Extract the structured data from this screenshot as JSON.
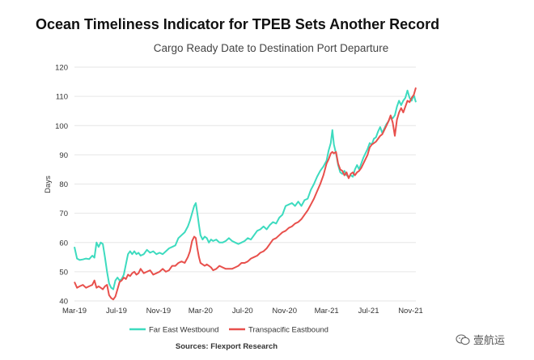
{
  "colors": {
    "far_east_westbound": "#3ddbbf",
    "transpacific_eastbound": "#e8504c",
    "gridline": "#e6e6e6"
  },
  "chart_data": {
    "type": "line",
    "title": "Ocean Timeliness Indicator for TPEB Sets Another Record",
    "subtitle": "Cargo Ready Date to Destination Port Departure",
    "xlabel": "",
    "ylabel": "Days",
    "ylim": [
      40,
      120
    ],
    "yticks": [
      "40",
      "50",
      "60",
      "70",
      "80",
      "90",
      "100",
      "110",
      "120"
    ],
    "xticks": [
      "Mar-19",
      "Jul-19",
      "Nov-19",
      "Mar-20",
      "Jul-20",
      "Nov-20",
      "Mar-21",
      "Jul-21",
      "Nov-21"
    ],
    "x_tick_positions_month": [
      0,
      4,
      8,
      12,
      16,
      20,
      24,
      28,
      32
    ],
    "grid": "horizontal",
    "legend_position": "bottom",
    "source": "Sources: Flexport Research",
    "series": [
      {
        "name": "Far East Westbound",
        "color_key": "far_east_westbound",
        "points": [
          [
            0.0,
            58.5
          ],
          [
            0.25,
            54.5
          ],
          [
            0.5,
            54.0
          ],
          [
            0.8,
            54.2
          ],
          [
            1.1,
            54.5
          ],
          [
            1.4,
            54.3
          ],
          [
            1.7,
            55.5
          ],
          [
            1.9,
            54.8
          ],
          [
            2.1,
            60.0
          ],
          [
            2.3,
            58.5
          ],
          [
            2.5,
            60.0
          ],
          [
            2.7,
            59.5
          ],
          [
            2.9,
            55.0
          ],
          [
            3.1,
            50.0
          ],
          [
            3.3,
            46.0
          ],
          [
            3.5,
            44.5
          ],
          [
            3.7,
            44.0
          ],
          [
            3.9,
            47.0
          ],
          [
            4.1,
            48.0
          ],
          [
            4.3,
            47.0
          ],
          [
            4.5,
            47.5
          ],
          [
            4.7,
            49.0
          ],
          [
            4.9,
            52.5
          ],
          [
            5.1,
            56.0
          ],
          [
            5.3,
            57.0
          ],
          [
            5.5,
            56.0
          ],
          [
            5.7,
            57.0
          ],
          [
            5.9,
            56.0
          ],
          [
            6.1,
            56.5
          ],
          [
            6.3,
            55.5
          ],
          [
            6.6,
            56.0
          ],
          [
            6.9,
            57.5
          ],
          [
            7.2,
            56.5
          ],
          [
            7.5,
            57.0
          ],
          [
            7.8,
            56.0
          ],
          [
            8.1,
            56.5
          ],
          [
            8.4,
            56.0
          ],
          [
            8.7,
            57.0
          ],
          [
            9.0,
            58.0
          ],
          [
            9.3,
            58.5
          ],
          [
            9.6,
            59.0
          ],
          [
            9.9,
            61.5
          ],
          [
            10.2,
            62.5
          ],
          [
            10.5,
            63.5
          ],
          [
            10.8,
            65.5
          ],
          [
            11.0,
            67.5
          ],
          [
            11.2,
            70.0
          ],
          [
            11.4,
            72.5
          ],
          [
            11.55,
            73.5
          ],
          [
            11.7,
            70.0
          ],
          [
            11.85,
            66.0
          ],
          [
            12.0,
            62.5
          ],
          [
            12.2,
            61.0
          ],
          [
            12.4,
            62.0
          ],
          [
            12.6,
            61.5
          ],
          [
            12.8,
            60.0
          ],
          [
            13.0,
            61.0
          ],
          [
            13.2,
            60.5
          ],
          [
            13.5,
            61.0
          ],
          [
            13.8,
            60.0
          ],
          [
            14.1,
            60.0
          ],
          [
            14.4,
            60.5
          ],
          [
            14.7,
            61.5
          ],
          [
            15.0,
            60.5
          ],
          [
            15.3,
            60.0
          ],
          [
            15.6,
            59.5
          ],
          [
            15.9,
            60.0
          ],
          [
            16.2,
            60.5
          ],
          [
            16.5,
            61.5
          ],
          [
            16.8,
            61.0
          ],
          [
            17.1,
            62.5
          ],
          [
            17.4,
            64.0
          ],
          [
            17.7,
            64.5
          ],
          [
            18.0,
            65.5
          ],
          [
            18.3,
            64.5
          ],
          [
            18.6,
            66.0
          ],
          [
            18.9,
            67.0
          ],
          [
            19.2,
            66.5
          ],
          [
            19.5,
            68.5
          ],
          [
            19.8,
            69.5
          ],
          [
            20.1,
            72.5
          ],
          [
            20.4,
            73.0
          ],
          [
            20.7,
            73.5
          ],
          [
            21.0,
            72.5
          ],
          [
            21.3,
            74.0
          ],
          [
            21.6,
            72.5
          ],
          [
            21.9,
            74.5
          ],
          [
            22.2,
            75.0
          ],
          [
            22.5,
            78.0
          ],
          [
            22.8,
            80.0
          ],
          [
            23.1,
            82.5
          ],
          [
            23.4,
            84.5
          ],
          [
            23.7,
            86.0
          ],
          [
            24.0,
            88.0
          ],
          [
            24.2,
            91.5
          ],
          [
            24.4,
            94.0
          ],
          [
            24.55,
            98.5
          ],
          [
            24.7,
            93.5
          ],
          [
            24.9,
            90.5
          ],
          [
            25.1,
            86.5
          ],
          [
            25.3,
            84.0
          ],
          [
            25.5,
            83.5
          ],
          [
            25.7,
            84.5
          ],
          [
            25.9,
            83.0
          ],
          [
            26.1,
            82.5
          ],
          [
            26.3,
            83.0
          ],
          [
            26.5,
            82.5
          ],
          [
            26.7,
            85.0
          ],
          [
            26.9,
            86.5
          ],
          [
            27.1,
            85.0
          ],
          [
            27.3,
            87.0
          ],
          [
            27.5,
            89.0
          ],
          [
            27.7,
            90.5
          ],
          [
            27.9,
            92.0
          ],
          [
            28.1,
            94.0
          ],
          [
            28.3,
            93.5
          ],
          [
            28.5,
            95.5
          ],
          [
            28.7,
            96.0
          ],
          [
            28.9,
            98.0
          ],
          [
            29.1,
            99.5
          ],
          [
            29.3,
            97.5
          ],
          [
            29.5,
            99.0
          ],
          [
            29.7,
            100.5
          ],
          [
            29.9,
            101.5
          ],
          [
            30.1,
            103.0
          ],
          [
            30.3,
            102.5
          ],
          [
            30.5,
            103.5
          ],
          [
            30.7,
            106.5
          ],
          [
            30.9,
            108.5
          ],
          [
            31.1,
            107.0
          ],
          [
            31.3,
            108.5
          ],
          [
            31.5,
            109.5
          ],
          [
            31.7,
            112.0
          ],
          [
            31.9,
            109.5
          ],
          [
            32.1,
            108.5
          ],
          [
            32.3,
            110.5
          ],
          [
            32.5,
            108.0
          ]
        ]
      },
      {
        "name": "Transpacific Eastbound",
        "color_key": "transpacific_eastbound",
        "points": [
          [
            0.0,
            46.5
          ],
          [
            0.25,
            44.5
          ],
          [
            0.5,
            45.0
          ],
          [
            0.8,
            45.5
          ],
          [
            1.1,
            44.5
          ],
          [
            1.4,
            45.0
          ],
          [
            1.7,
            45.5
          ],
          [
            1.9,
            47.0
          ],
          [
            2.1,
            44.5
          ],
          [
            2.3,
            45.0
          ],
          [
            2.5,
            44.5
          ],
          [
            2.7,
            44.0
          ],
          [
            2.9,
            45.0
          ],
          [
            3.1,
            45.5
          ],
          [
            3.3,
            42.0
          ],
          [
            3.5,
            41.0
          ],
          [
            3.7,
            40.5
          ],
          [
            3.9,
            41.5
          ],
          [
            4.1,
            44.0
          ],
          [
            4.3,
            46.5
          ],
          [
            4.5,
            47.0
          ],
          [
            4.7,
            48.0
          ],
          [
            4.9,
            47.5
          ],
          [
            5.1,
            49.0
          ],
          [
            5.3,
            48.5
          ],
          [
            5.5,
            49.5
          ],
          [
            5.7,
            50.0
          ],
          [
            5.9,
            49.0
          ],
          [
            6.1,
            49.5
          ],
          [
            6.3,
            51.0
          ],
          [
            6.6,
            49.5
          ],
          [
            6.9,
            50.0
          ],
          [
            7.2,
            50.5
          ],
          [
            7.5,
            49.0
          ],
          [
            7.8,
            49.5
          ],
          [
            8.1,
            50.0
          ],
          [
            8.4,
            51.0
          ],
          [
            8.7,
            50.0
          ],
          [
            9.0,
            50.5
          ],
          [
            9.3,
            52.0
          ],
          [
            9.6,
            52.0
          ],
          [
            9.9,
            53.0
          ],
          [
            10.2,
            53.5
          ],
          [
            10.5,
            53.0
          ],
          [
            10.8,
            55.0
          ],
          [
            11.0,
            57.0
          ],
          [
            11.2,
            60.5
          ],
          [
            11.4,
            62.0
          ],
          [
            11.55,
            61.5
          ],
          [
            11.7,
            58.0
          ],
          [
            11.85,
            55.0
          ],
          [
            12.0,
            53.0
          ],
          [
            12.2,
            52.5
          ],
          [
            12.4,
            52.0
          ],
          [
            12.6,
            52.5
          ],
          [
            12.8,
            52.0
          ],
          [
            13.0,
            51.5
          ],
          [
            13.2,
            50.5
          ],
          [
            13.5,
            51.0
          ],
          [
            13.8,
            52.0
          ],
          [
            14.1,
            51.5
          ],
          [
            14.4,
            51.0
          ],
          [
            14.7,
            51.0
          ],
          [
            15.0,
            51.0
          ],
          [
            15.3,
            51.5
          ],
          [
            15.6,
            52.0
          ],
          [
            15.9,
            53.0
          ],
          [
            16.2,
            53.0
          ],
          [
            16.5,
            53.5
          ],
          [
            16.8,
            54.5
          ],
          [
            17.1,
            55.0
          ],
          [
            17.4,
            55.5
          ],
          [
            17.7,
            56.5
          ],
          [
            18.0,
            57.0
          ],
          [
            18.3,
            58.0
          ],
          [
            18.6,
            59.5
          ],
          [
            18.9,
            61.0
          ],
          [
            19.2,
            61.5
          ],
          [
            19.5,
            62.5
          ],
          [
            19.8,
            63.5
          ],
          [
            20.1,
            64.0
          ],
          [
            20.4,
            65.0
          ],
          [
            20.7,
            65.5
          ],
          [
            21.0,
            66.5
          ],
          [
            21.3,
            67.0
          ],
          [
            21.6,
            68.0
          ],
          [
            21.9,
            69.5
          ],
          [
            22.2,
            71.0
          ],
          [
            22.5,
            73.0
          ],
          [
            22.8,
            75.0
          ],
          [
            23.1,
            77.5
          ],
          [
            23.4,
            80.0
          ],
          [
            23.7,
            83.0
          ],
          [
            24.0,
            87.0
          ],
          [
            24.2,
            88.5
          ],
          [
            24.4,
            90.5
          ],
          [
            24.55,
            91.0
          ],
          [
            24.7,
            90.5
          ],
          [
            24.9,
            91.0
          ],
          [
            25.1,
            87.0
          ],
          [
            25.3,
            85.0
          ],
          [
            25.5,
            84.5
          ],
          [
            25.7,
            83.0
          ],
          [
            25.9,
            84.0
          ],
          [
            26.1,
            82.0
          ],
          [
            26.3,
            83.5
          ],
          [
            26.5,
            84.0
          ],
          [
            26.7,
            83.0
          ],
          [
            26.9,
            84.0
          ],
          [
            27.1,
            84.5
          ],
          [
            27.3,
            85.5
          ],
          [
            27.5,
            87.0
          ],
          [
            27.7,
            88.5
          ],
          [
            27.9,
            90.0
          ],
          [
            28.1,
            92.5
          ],
          [
            28.3,
            93.5
          ],
          [
            28.5,
            94.0
          ],
          [
            28.7,
            94.5
          ],
          [
            28.9,
            95.5
          ],
          [
            29.1,
            96.5
          ],
          [
            29.3,
            97.0
          ],
          [
            29.5,
            98.5
          ],
          [
            29.7,
            100.0
          ],
          [
            29.9,
            101.5
          ],
          [
            30.1,
            103.5
          ],
          [
            30.3,
            101.0
          ],
          [
            30.5,
            96.5
          ],
          [
            30.7,
            102.0
          ],
          [
            30.9,
            104.5
          ],
          [
            31.1,
            106.0
          ],
          [
            31.3,
            104.5
          ],
          [
            31.5,
            106.5
          ],
          [
            31.7,
            108.5
          ],
          [
            31.9,
            108.0
          ],
          [
            32.1,
            109.5
          ],
          [
            32.3,
            110.5
          ],
          [
            32.5,
            113.0
          ]
        ]
      }
    ]
  },
  "watermark": {
    "text": "壹航运",
    "icon": "wechat-icon"
  }
}
